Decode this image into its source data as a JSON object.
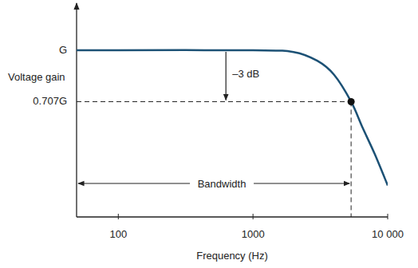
{
  "chart_data": {
    "type": "line",
    "x_label": "Frequency (Hz)",
    "y_label": "Voltage gain",
    "annotations": [
      "–3 dB",
      "Bandwidth"
    ],
    "x": [
      49,
      100,
      1000,
      2000,
      3000,
      4000,
      5350,
      6500,
      8000,
      10000
    ],
    "values": [
      1,
      1,
      1,
      0.99,
      0.94,
      0.86,
      0.707,
      0.56,
      0.41,
      0.23
    ],
    "color": "#1c5175",
    "log": "x",
    "grid": false,
    "xlim": [
      49,
      10000
    ],
    "ylim": [
      0.05,
      1.25
    ],
    "xticks": [
      100,
      1000,
      {
        "value": 10000,
        "label": "10 000"
      }
    ],
    "yticks": [
      {
        "value": 0.707,
        "label": "0.707G"
      },
      {
        "value": 1,
        "label": "G"
      }
    ],
    "cutoff": {
      "x": 5350,
      "y": 0.707
    }
  }
}
